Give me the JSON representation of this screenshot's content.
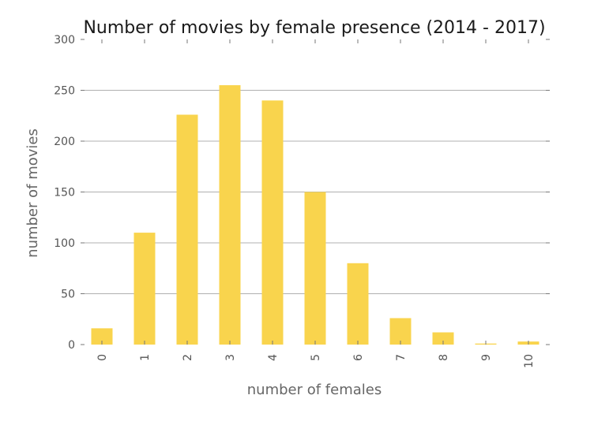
{
  "chart_data": {
    "type": "bar",
    "title": "Number of movies by female presence (2014 - 2017)",
    "xlabel": "number of females",
    "ylabel": "number of movies",
    "categories": [
      "0",
      "1",
      "2",
      "3",
      "4",
      "5",
      "6",
      "7",
      "8",
      "9",
      "10"
    ],
    "values": [
      16,
      110,
      226,
      255,
      240,
      150,
      80,
      26,
      12,
      1,
      3
    ],
    "ylim": [
      0,
      300
    ],
    "yticks": [
      "0",
      "50",
      "100",
      "150",
      "200",
      "250",
      "300"
    ],
    "grid": "horizontal",
    "bar_color": "#f9d44d"
  }
}
